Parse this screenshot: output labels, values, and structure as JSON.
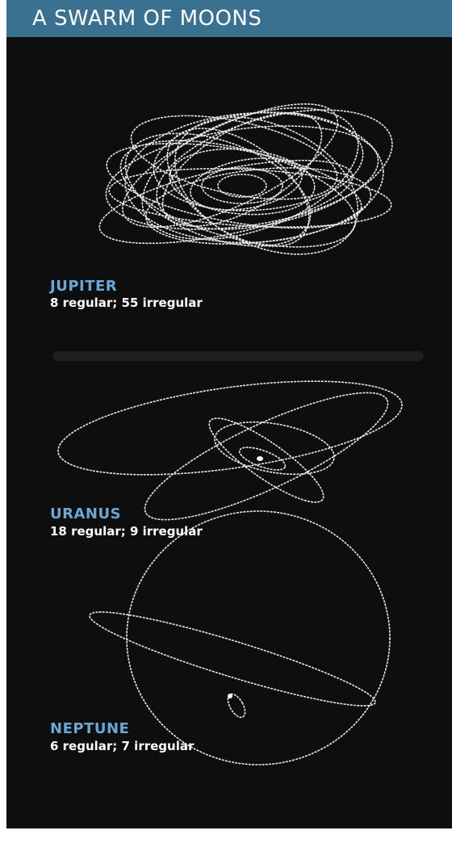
{
  "header": {
    "title": "A SWARM OF MOONS"
  },
  "panels": [
    {
      "name": "JUPITER",
      "description": "8 regular; 55 irregular"
    },
    {
      "name": "URANUS",
      "description": "18 regular; 9 irregular"
    },
    {
      "name": "NEPTUNE",
      "description": "6 regular; 7 irregular"
    }
  ]
}
